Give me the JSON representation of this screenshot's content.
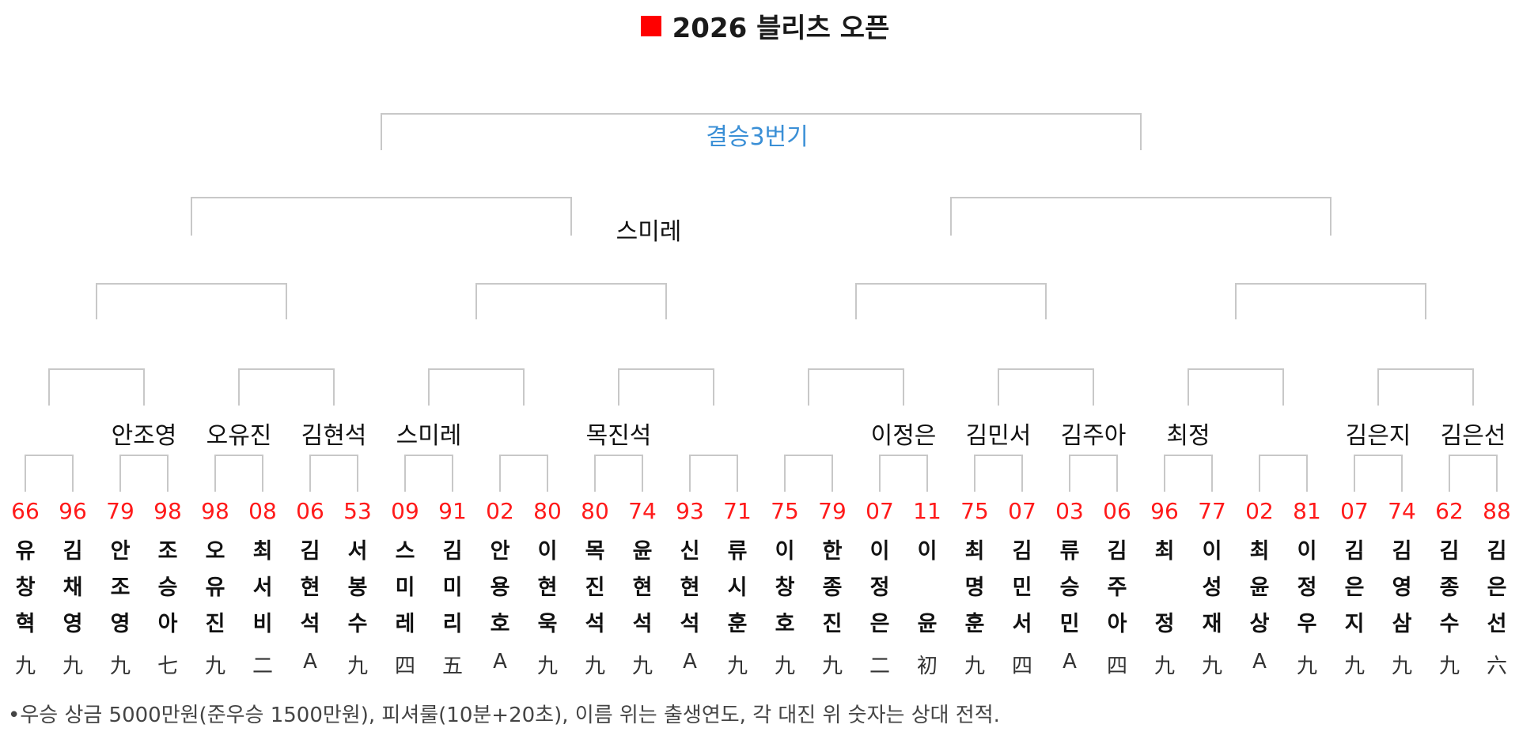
{
  "title": "2026 블리츠 오픈",
  "title_marker_color": "#ff0000",
  "final": {
    "label": "결승3번기",
    "label_color": "#3a8fd6"
  },
  "semifinal_winner": "스미레",
  "round1_winners": [
    "",
    "안조영",
    "오유진",
    "김현석",
    "스미레",
    "",
    "목진석",
    "",
    "",
    "이정은",
    "김민서",
    "김주아",
    "최정",
    "",
    "김은지",
    "김은선"
  ],
  "players": [
    {
      "record": "66",
      "name": [
        "유",
        "창",
        "혁"
      ],
      "rank": "九"
    },
    {
      "record": "96",
      "name": [
        "김",
        "채",
        "영"
      ],
      "rank": "九"
    },
    {
      "record": "79",
      "name": [
        "안",
        "조",
        "영"
      ],
      "rank": "九"
    },
    {
      "record": "98",
      "name": [
        "조",
        "승",
        "아"
      ],
      "rank": "七"
    },
    {
      "record": "98",
      "name": [
        "오",
        "유",
        "진"
      ],
      "rank": "九"
    },
    {
      "record": "08",
      "name": [
        "최",
        "서",
        "비"
      ],
      "rank": "二"
    },
    {
      "record": "06",
      "name": [
        "김",
        "현",
        "석"
      ],
      "rank": "A"
    },
    {
      "record": "53",
      "name": [
        "서",
        "봉",
        "수"
      ],
      "rank": "九"
    },
    {
      "record": "09",
      "name": [
        "스",
        "미",
        "레"
      ],
      "rank": "四"
    },
    {
      "record": "91",
      "name": [
        "김",
        "미",
        "리"
      ],
      "rank": "五"
    },
    {
      "record": "02",
      "name": [
        "안",
        "용",
        "호"
      ],
      "rank": "A"
    },
    {
      "record": "80",
      "name": [
        "이",
        "현",
        "욱"
      ],
      "rank": "九"
    },
    {
      "record": "80",
      "name": [
        "목",
        "진",
        "석"
      ],
      "rank": "九"
    },
    {
      "record": "74",
      "name": [
        "윤",
        "현",
        "석"
      ],
      "rank": "九"
    },
    {
      "record": "93",
      "name": [
        "신",
        "현",
        "석"
      ],
      "rank": "A"
    },
    {
      "record": "71",
      "name": [
        "류",
        "시",
        "훈"
      ],
      "rank": "九"
    },
    {
      "record": "75",
      "name": [
        "이",
        "창",
        "호"
      ],
      "rank": "九"
    },
    {
      "record": "79",
      "name": [
        "한",
        "종",
        "진"
      ],
      "rank": "九"
    },
    {
      "record": "07",
      "name": [
        "이",
        "정",
        "은"
      ],
      "rank": "二"
    },
    {
      "record": "11",
      "name": [
        "이",
        "",
        "윤"
      ],
      "rank": "初"
    },
    {
      "record": "75",
      "name": [
        "최",
        "명",
        "훈"
      ],
      "rank": "九"
    },
    {
      "record": "07",
      "name": [
        "김",
        "민",
        "서"
      ],
      "rank": "四"
    },
    {
      "record": "03",
      "name": [
        "류",
        "승",
        "민"
      ],
      "rank": "A"
    },
    {
      "record": "06",
      "name": [
        "김",
        "주",
        "아"
      ],
      "rank": "四"
    },
    {
      "record": "96",
      "name": [
        "최",
        "",
        "정"
      ],
      "rank": "九"
    },
    {
      "record": "77",
      "name": [
        "이",
        "성",
        "재"
      ],
      "rank": "九"
    },
    {
      "record": "02",
      "name": [
        "최",
        "윤",
        "상"
      ],
      "rank": "A"
    },
    {
      "record": "81",
      "name": [
        "이",
        "정",
        "우"
      ],
      "rank": "九"
    },
    {
      "record": "07",
      "name": [
        "김",
        "은",
        "지"
      ],
      "rank": "九"
    },
    {
      "record": "74",
      "name": [
        "김",
        "영",
        "삼"
      ],
      "rank": "九"
    },
    {
      "record": "62",
      "name": [
        "김",
        "종",
        "수"
      ],
      "rank": "九"
    },
    {
      "record": "88",
      "name": [
        "김",
        "은",
        "선"
      ],
      "rank": "六"
    }
  ],
  "footer": "•우승 상금 5000만원(준우승 1500만원), 피셔룰(10분+20초), 이름 위는 출생연도, 각 대진 위 숫자는 상대 전적.",
  "colors": {
    "record": "#ff1a1a",
    "bracket_line": "#c8c8c8"
  }
}
